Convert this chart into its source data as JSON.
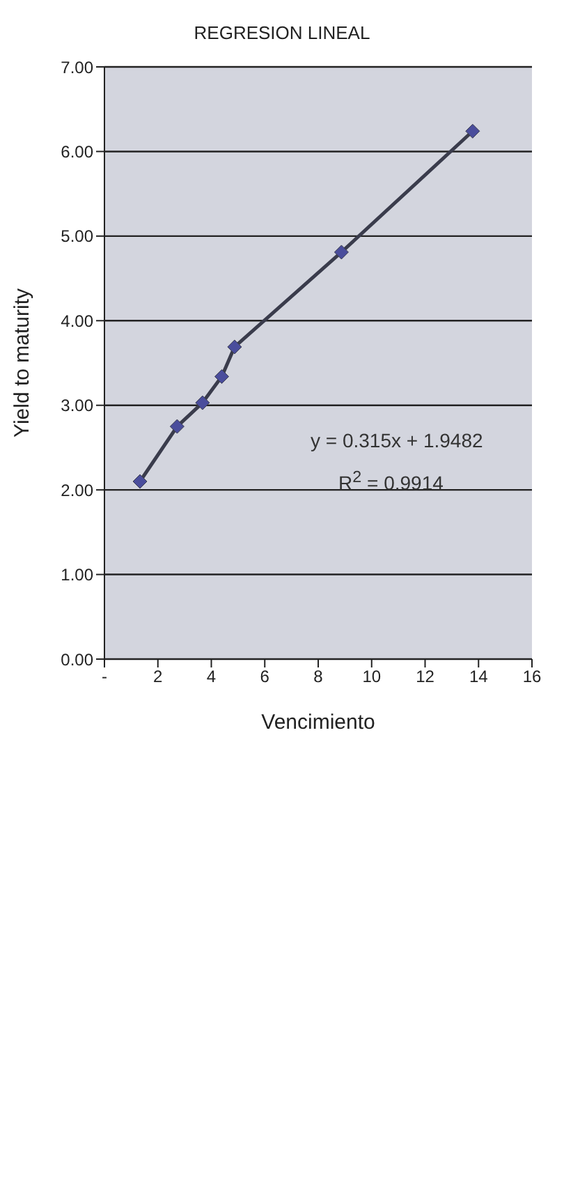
{
  "chart_data": {
    "type": "line",
    "title": "REGRESION LINEAL",
    "xlabel": "Vencimiento",
    "ylabel": "Yield to maturity",
    "x": [
      1.33,
      2.72,
      3.67,
      4.39,
      4.87,
      8.87,
      13.78
    ],
    "series": [
      {
        "color": "#3a3c4c",
        "values": [
          2.1,
          2.75,
          3.03,
          3.34,
          3.69,
          4.81,
          6.24
        ]
      }
    ],
    "marker": "diamond",
    "line_style": "solid",
    "grid": "y",
    "xlim": [
      0,
      16
    ],
    "xticks": [
      {
        "value": 0,
        "label": "-"
      },
      2,
      4,
      6,
      8,
      10,
      12,
      14,
      16
    ],
    "ylim": [
      0,
      7
    ],
    "yticks": [
      {
        "value": 0,
        "label": "0.00"
      },
      {
        "value": 1,
        "label": "1.00"
      },
      {
        "value": 2,
        "label": "2.00"
      },
      {
        "value": 3,
        "label": "3.00"
      },
      {
        "value": 4,
        "label": "4.00"
      },
      {
        "value": 5,
        "label": "5.00"
      },
      {
        "value": 6,
        "label": "6.00"
      },
      {
        "value": 7,
        "label": "7.00"
      }
    ],
    "annotations": [
      "y = 0.315x + 1.9482",
      "R$^{2}$ = 0.9914"
    ]
  }
}
